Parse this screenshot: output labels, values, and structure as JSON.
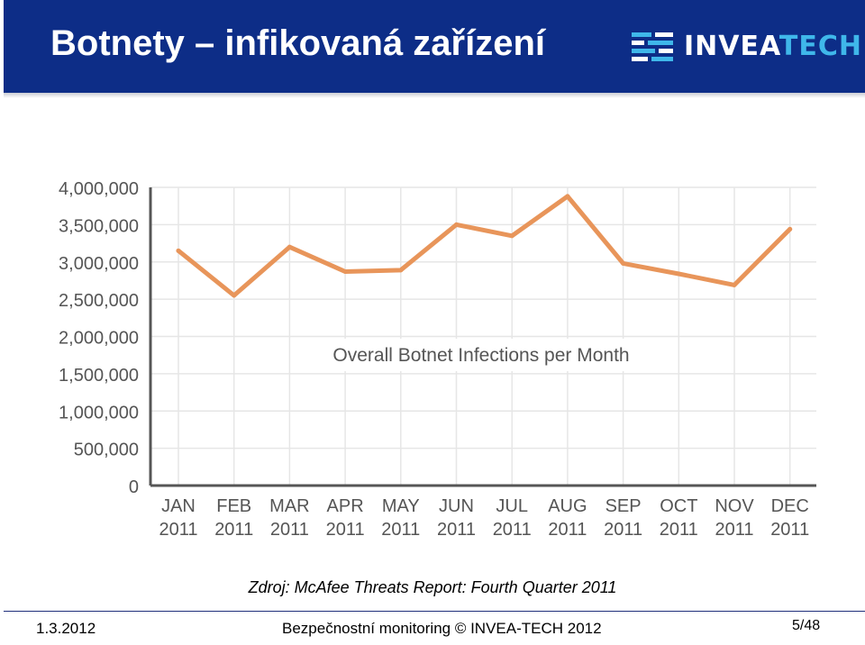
{
  "slide": {
    "title": "Botnety – infikovaná zařízení",
    "logo": {
      "part1": "INVEA",
      "part2": "TECH",
      "icon": "invea-tech-logo-icon"
    },
    "source": "Zdroj: McAfee Threats Report: Fourth Quarter 2011",
    "footer": {
      "date": "1.3.2012",
      "center": "Bezpečnostní monitoring © INVEA-TECH 2012",
      "page": "5/48"
    }
  },
  "colors": {
    "header": "#0d2d87",
    "line": "#e8955a",
    "logo_accent": "#3fb7ea"
  },
  "chart_data": {
    "type": "line",
    "title": "Overall Botnet Infections per Month",
    "categories": [
      "JAN 2011",
      "FEB 2011",
      "MAR 2011",
      "APR 2011",
      "MAY 2011",
      "JUN 2011",
      "JUL 2011",
      "AUG 2011",
      "SEP 2011",
      "OCT 2011",
      "NOV 2011",
      "DEC 2011"
    ],
    "category_lines": [
      [
        "JAN",
        "2011"
      ],
      [
        "FEB",
        "2011"
      ],
      [
        "MAR",
        "2011"
      ],
      [
        "APR",
        "2011"
      ],
      [
        "MAY",
        "2011"
      ],
      [
        "JUN",
        "2011"
      ],
      [
        "JUL",
        "2011"
      ],
      [
        "AUG",
        "2011"
      ],
      [
        "SEP",
        "2011"
      ],
      [
        "OCT",
        "2011"
      ],
      [
        "NOV",
        "2011"
      ],
      [
        "DEC",
        "2011"
      ]
    ],
    "series": [
      {
        "values": [
          3150000,
          2550000,
          3200000,
          2870000,
          2890000,
          3500000,
          3350000,
          3880000,
          2980000,
          2840000,
          2690000,
          3440000
        ]
      }
    ],
    "yticks": [
      0,
      500000,
      1000000,
      1500000,
      2000000,
      2500000,
      3000000,
      3500000,
      4000000
    ],
    "ytick_labels": [
      "0",
      "500,000",
      "1,000,000",
      "1,500,000",
      "2,000,000",
      "2,500,000",
      "3,000,000",
      "3,500,000",
      "4,000,000"
    ],
    "ylim": [
      0,
      4000000
    ],
    "grid": true,
    "legend": "none",
    "xlabel": "",
    "ylabel": ""
  }
}
